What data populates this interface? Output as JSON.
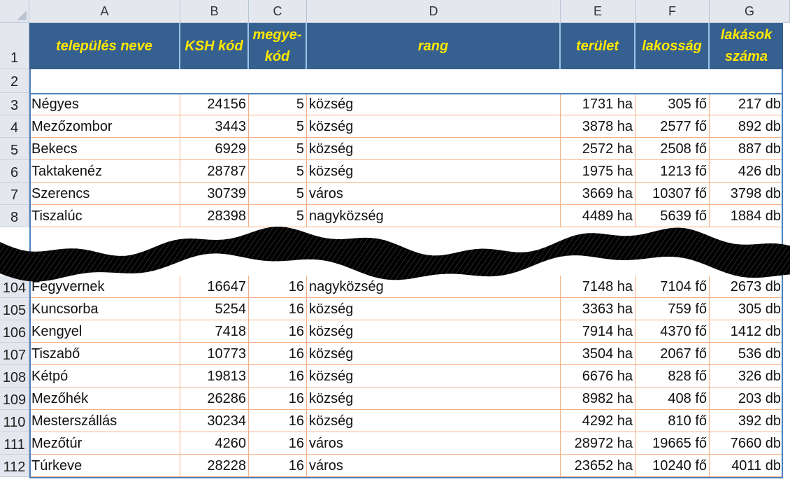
{
  "column_letters": [
    "A",
    "B",
    "C",
    "D",
    "E",
    "F",
    "G"
  ],
  "header_row_number": "1",
  "empty_row_number": "2",
  "headers": {
    "a": "település neve",
    "b": "KSH kód",
    "c1": "megye-",
    "c2": "kód",
    "d": "rang",
    "e": "terület",
    "f": "lakosság",
    "g1": "lakások",
    "g2": "száma"
  },
  "top_rows": [
    {
      "num": "3",
      "name": "Négyes",
      "ksh": "24156",
      "megye": "5",
      "rang": "község",
      "terulet": "1731 ha",
      "lakossag": "305 fő",
      "lakas": "217 db"
    },
    {
      "num": "4",
      "name": "Mezőzombor",
      "ksh": "3443",
      "megye": "5",
      "rang": "község",
      "terulet": "3878 ha",
      "lakossag": "2577 fő",
      "lakas": "892 db"
    },
    {
      "num": "5",
      "name": "Bekecs",
      "ksh": "6929",
      "megye": "5",
      "rang": "község",
      "terulet": "2572 ha",
      "lakossag": "2508 fő",
      "lakas": "887 db"
    },
    {
      "num": "6",
      "name": "Taktakenéz",
      "ksh": "28787",
      "megye": "5",
      "rang": "község",
      "terulet": "1975 ha",
      "lakossag": "1213 fő",
      "lakas": "426 db"
    },
    {
      "num": "7",
      "name": "Szerencs",
      "ksh": "30739",
      "megye": "5",
      "rang": "város",
      "terulet": "3669 ha",
      "lakossag": "10307 fő",
      "lakas": "3798 db"
    },
    {
      "num": "8",
      "name": "Tiszalúc",
      "ksh": "28398",
      "megye": "5",
      "rang": "nagyközség",
      "terulet": "4489 ha",
      "lakossag": "5639 fő",
      "lakas": "1884 db"
    }
  ],
  "bottom_rows": [
    {
      "num": "104",
      "name": "Fegyvernek",
      "ksh": "16647",
      "megye": "16",
      "rang": "nagyközség",
      "terulet": "7148 ha",
      "lakossag": "7104 fő",
      "lakas": "2673 db"
    },
    {
      "num": "105",
      "name": "Kuncsorba",
      "ksh": "5254",
      "megye": "16",
      "rang": "község",
      "terulet": "3363 ha",
      "lakossag": "759 fő",
      "lakas": "305 db"
    },
    {
      "num": "106",
      "name": "Kengyel",
      "ksh": "7418",
      "megye": "16",
      "rang": "község",
      "terulet": "7914 ha",
      "lakossag": "4370 fő",
      "lakas": "1412 db"
    },
    {
      "num": "107",
      "name": "Tiszabő",
      "ksh": "10773",
      "megye": "16",
      "rang": "község",
      "terulet": "3504 ha",
      "lakossag": "2067 fő",
      "lakas": "536 db"
    },
    {
      "num": "108",
      "name": "Kétpó",
      "ksh": "19813",
      "megye": "16",
      "rang": "község",
      "terulet": "6676 ha",
      "lakossag": "828 fő",
      "lakas": "326 db"
    },
    {
      "num": "109",
      "name": "Mezőhék",
      "ksh": "26286",
      "megye": "16",
      "rang": "község",
      "terulet": "8982 ha",
      "lakossag": "408 fő",
      "lakas": "203 db"
    },
    {
      "num": "110",
      "name": "Mesterszállás",
      "ksh": "30234",
      "megye": "16",
      "rang": "község",
      "terulet": "4292 ha",
      "lakossag": "810 fő",
      "lakas": "392 db"
    },
    {
      "num": "111",
      "name": "Mezőtúr",
      "ksh": "4260",
      "megye": "16",
      "rang": "város",
      "terulet": "28972 ha",
      "lakossag": "19665 fő",
      "lakas": "7660 db"
    },
    {
      "num": "112",
      "name": "Túrkeve",
      "ksh": "28228",
      "megye": "16",
      "rang": "város",
      "terulet": "23652 ha",
      "lakossag": "10240 fő",
      "lakas": "4011 db"
    }
  ],
  "colors": {
    "header_bg": "#36608f",
    "header_text": "#ffe800",
    "border_accent": "#4f81bd",
    "row_line": "#f6b084"
  }
}
